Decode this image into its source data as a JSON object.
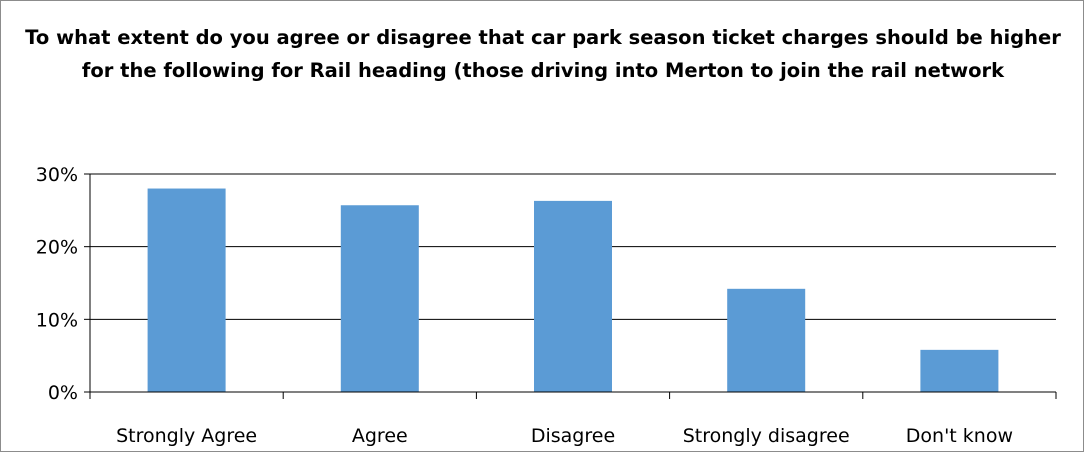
{
  "chart_data": {
    "type": "bar",
    "title": "To what extent do you agree or disagree that car park season ticket charges should be higher for the following for Rail heading (those driving into Merton to join the rail network",
    "xlabel": "",
    "ylabel": "",
    "categories": [
      "Strongly Agree",
      "Agree",
      "Disagree",
      "Strongly disagree",
      "Don't know"
    ],
    "values": [
      28,
      25.7,
      26.3,
      14.2,
      5.8
    ],
    "ylim": [
      0,
      30
    ],
    "yticks": [
      "0%",
      "10%",
      "20%",
      "30%"
    ],
    "ytick_values": [
      0,
      10,
      20,
      30
    ],
    "grid": true,
    "legend": "none",
    "bar_color": "#5b9bd5"
  }
}
